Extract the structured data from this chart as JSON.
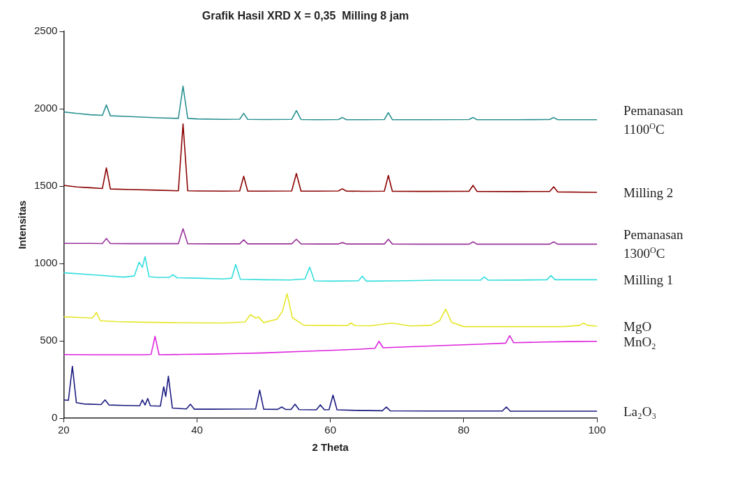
{
  "chart_data": {
    "type": "line",
    "title": "Grafik Hasil XRD X = 0,35  Milling 8 jam",
    "xlabel": "2 Theta",
    "ylabel": "Intensitas",
    "xlim": [
      20,
      100
    ],
    "xticks": [
      20,
      40,
      60,
      80,
      100
    ],
    "ylim": [
      0,
      2500
    ],
    "yticks": [
      0,
      500,
      1000,
      1500,
      2000,
      2500
    ],
    "grid": false,
    "legend": false,
    "marker": "none",
    "line_style": "solid",
    "series": [
      {
        "name": "Pemanasan 1100$^{O}$C",
        "color": "#2a9090",
        "x": [
          20,
          22,
          24,
          25.8,
          26.4,
          27,
          30,
          34,
          37.2,
          37.9,
          38.6,
          40,
          44,
          46.4,
          47,
          47.6,
          50,
          54.2,
          54.9,
          55.6,
          58,
          61.2,
          61.8,
          62.4,
          65,
          68.1,
          68.7,
          69.3,
          74,
          80.8,
          81.4,
          82,
          88,
          92.9,
          93.5,
          94.1,
          100
        ],
        "values": [
          1980,
          1970,
          1962,
          1958,
          2025,
          1955,
          1950,
          1942,
          1938,
          2147,
          1938,
          1935,
          1932,
          1933,
          1971,
          1932,
          1931,
          1932,
          1989,
          1931,
          1930,
          1931,
          1944,
          1930,
          1930,
          1931,
          1975,
          1930,
          1930,
          1931,
          1944,
          1930,
          1930,
          1931,
          1944,
          1930,
          1930
        ]
      },
      {
        "name": "Milling 2",
        "color": "#8b0000",
        "x": [
          20,
          22,
          24,
          25.8,
          26.4,
          27,
          30,
          34,
          37.2,
          37.9,
          38.6,
          40,
          44,
          46.4,
          47,
          47.6,
          50,
          54.2,
          54.9,
          55.6,
          58,
          61.2,
          61.8,
          62.4,
          65,
          68.1,
          68.7,
          69.3,
          74,
          80.8,
          81.4,
          82,
          88,
          92.9,
          93.5,
          94.1,
          100
        ],
        "values": [
          1505,
          1495,
          1490,
          1485,
          1618,
          1482,
          1478,
          1474,
          1470,
          1903,
          1470,
          1469,
          1468,
          1469,
          1564,
          1468,
          1468,
          1469,
          1582,
          1468,
          1468,
          1469,
          1483,
          1468,
          1467,
          1468,
          1569,
          1467,
          1466,
          1467,
          1505,
          1466,
          1465,
          1466,
          1496,
          1463,
          1460
        ]
      },
      {
        "name": "Pemanasan 1300$^{O}$C",
        "color": "#993399",
        "x": [
          20,
          24,
          25.8,
          26.4,
          27,
          30,
          34,
          37.2,
          37.9,
          38.6,
          42,
          46.4,
          47,
          47.6,
          50,
          54.2,
          54.9,
          55.6,
          58,
          61.2,
          61.8,
          62.4,
          65,
          68.1,
          68.7,
          69.3,
          74,
          80.8,
          81.4,
          82,
          88,
          92.9,
          93.5,
          94.1,
          100
        ],
        "values": [
          1130,
          1130,
          1129,
          1162,
          1129,
          1128,
          1128,
          1128,
          1225,
          1128,
          1127,
          1127,
          1153,
          1127,
          1127,
          1127,
          1157,
          1127,
          1126,
          1126,
          1135,
          1126,
          1126,
          1126,
          1157,
          1126,
          1125,
          1125,
          1140,
          1125,
          1125,
          1125,
          1140,
          1125,
          1125
        ]
      },
      {
        "name": "Milling 1",
        "color": "#33dddd",
        "x": [
          20,
          25,
          29,
          30.6,
          31.3,
          31.8,
          32.2,
          32.8,
          34,
          35.8,
          36.4,
          37,
          40,
          44,
          45.2,
          45.8,
          46.5,
          50,
          54,
          56.2,
          56.9,
          57.6,
          60,
          64.2,
          64.8,
          65.4,
          70,
          76,
          82.5,
          83.1,
          83.7,
          88,
          92.5,
          93.1,
          93.7,
          100
        ],
        "values": [
          940,
          925,
          912,
          920,
          1008,
          975,
          1044,
          915,
          910,
          910,
          927,
          908,
          905,
          900,
          905,
          994,
          898,
          895,
          893,
          900,
          977,
          888,
          886,
          888,
          918,
          886,
          888,
          892,
          892,
          913,
          892,
          893,
          895,
          922,
          895,
          895
        ]
      },
      {
        "name": "MgO",
        "color": "#e6e62a",
        "x": [
          20,
          23,
          24.3,
          24.9,
          25.5,
          28,
          32,
          36,
          40,
          44,
          47.2,
          48,
          48.8,
          49.2,
          50,
          52,
          52.8,
          53.5,
          54.3,
          56,
          60,
          62.5,
          63.1,
          63.7,
          66,
          69.2,
          72,
          75,
          76.4,
          77.3,
          78.2,
          80,
          85,
          90,
          95,
          97.4,
          98,
          98.6,
          100
        ],
        "values": [
          655,
          650,
          648,
          683,
          630,
          624,
          620,
          618,
          616,
          615,
          622,
          669,
          648,
          655,
          618,
          640,
          690,
          805,
          650,
          601,
          600,
          598,
          615,
          598,
          597,
          615,
          596,
          600,
          630,
          705,
          620,
          592,
          592,
          592,
          592,
          600,
          615,
          600,
          595
        ]
      },
      {
        "name": "MnO₂",
        "color": "#dd22dd",
        "x": [
          20,
          24,
          28,
          32,
          33.1,
          33.7,
          34.3,
          38,
          42,
          46,
          50,
          55,
          60,
          64,
          66.7,
          67.3,
          67.9,
          72,
          77,
          82.8,
          86.3,
          86.9,
          87.5,
          92,
          96,
          100
        ],
        "values": [
          411,
          410,
          410,
          410,
          412,
          529,
          410,
          412,
          414,
          418,
          422,
          430,
          438,
          445,
          452,
          497,
          455,
          462,
          470,
          479,
          485,
          533,
          488,
          492,
          495,
          497
        ]
      },
      {
        "name": "La₂O₃",
        "color": "#1a1a80",
        "x": [
          20,
          20.7,
          21.3,
          21.9,
          23,
          25.6,
          26.2,
          26.8,
          29,
          31.4,
          31.8,
          32.2,
          32.6,
          33,
          34.5,
          35,
          35.3,
          35.7,
          36.3,
          38.4,
          39,
          39.6,
          42,
          48.8,
          49.4,
          50,
          52.1,
          52.7,
          53.3,
          54.1,
          54.7,
          55.3,
          57.9,
          58.5,
          59.1,
          59.8,
          60.4,
          61,
          64,
          67.8,
          68.4,
          69,
          75,
          85.8,
          86.4,
          87,
          92,
          100
        ],
        "values": [
          118,
          115,
          335,
          100,
          92,
          88,
          118,
          85,
          82,
          80,
          118,
          85,
          127,
          80,
          78,
          203,
          140,
          271,
          65,
          60,
          90,
          58,
          58,
          60,
          181,
          58,
          57,
          72,
          56,
          56,
          90,
          55,
          54,
          86,
          54,
          55,
          149,
          54,
          50,
          48,
          72,
          47,
          46,
          46,
          72,
          45,
          45,
          45
        ]
      }
    ]
  }
}
